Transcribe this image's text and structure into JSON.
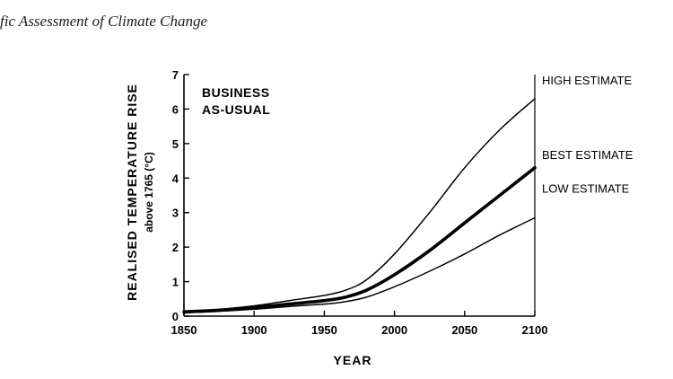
{
  "page": {
    "header_text": "fic Assessment of Climate Change"
  },
  "chart_data": {
    "type": "line",
    "title": "",
    "xlabel": "YEAR",
    "ylabel": "REALISED TEMPERATURE RISE",
    "ylabel_sub": "above 1765 (°C)",
    "xlim": [
      1850,
      2100
    ],
    "ylim": [
      0,
      7
    ],
    "x_ticks": [
      1850,
      1900,
      1950,
      2000,
      2050,
      2100
    ],
    "y_ticks": [
      0,
      1,
      2,
      3,
      4,
      5,
      6,
      7
    ],
    "grid": false,
    "legend": "none",
    "annotations": [
      {
        "text": "BUSINESS",
        "position": "top-left"
      },
      {
        "text": "AS-USUAL",
        "position": "top-left"
      }
    ],
    "series": [
      {
        "name": "HIGH ESTIMATE",
        "x": [
          1850,
          1875,
          1900,
          1925,
          1950,
          1965,
          1980,
          2000,
          2025,
          2050,
          2075,
          2100
        ],
        "y": [
          0.15,
          0.2,
          0.3,
          0.45,
          0.6,
          0.75,
          1.05,
          1.8,
          3.0,
          4.3,
          5.4,
          6.3
        ]
      },
      {
        "name": "BEST ESTIMATE",
        "x": [
          1850,
          1875,
          1900,
          1925,
          1950,
          1965,
          1980,
          2000,
          2025,
          2050,
          2075,
          2100
        ],
        "y": [
          0.12,
          0.17,
          0.25,
          0.35,
          0.45,
          0.55,
          0.75,
          1.2,
          1.9,
          2.7,
          3.5,
          4.3
        ]
      },
      {
        "name": "LOW ESTIMATE",
        "x": [
          1850,
          1875,
          1900,
          1925,
          1950,
          1965,
          1980,
          2000,
          2025,
          2050,
          2075,
          2100
        ],
        "y": [
          0.1,
          0.14,
          0.2,
          0.28,
          0.35,
          0.42,
          0.55,
          0.85,
          1.3,
          1.8,
          2.35,
          2.85
        ]
      }
    ]
  }
}
